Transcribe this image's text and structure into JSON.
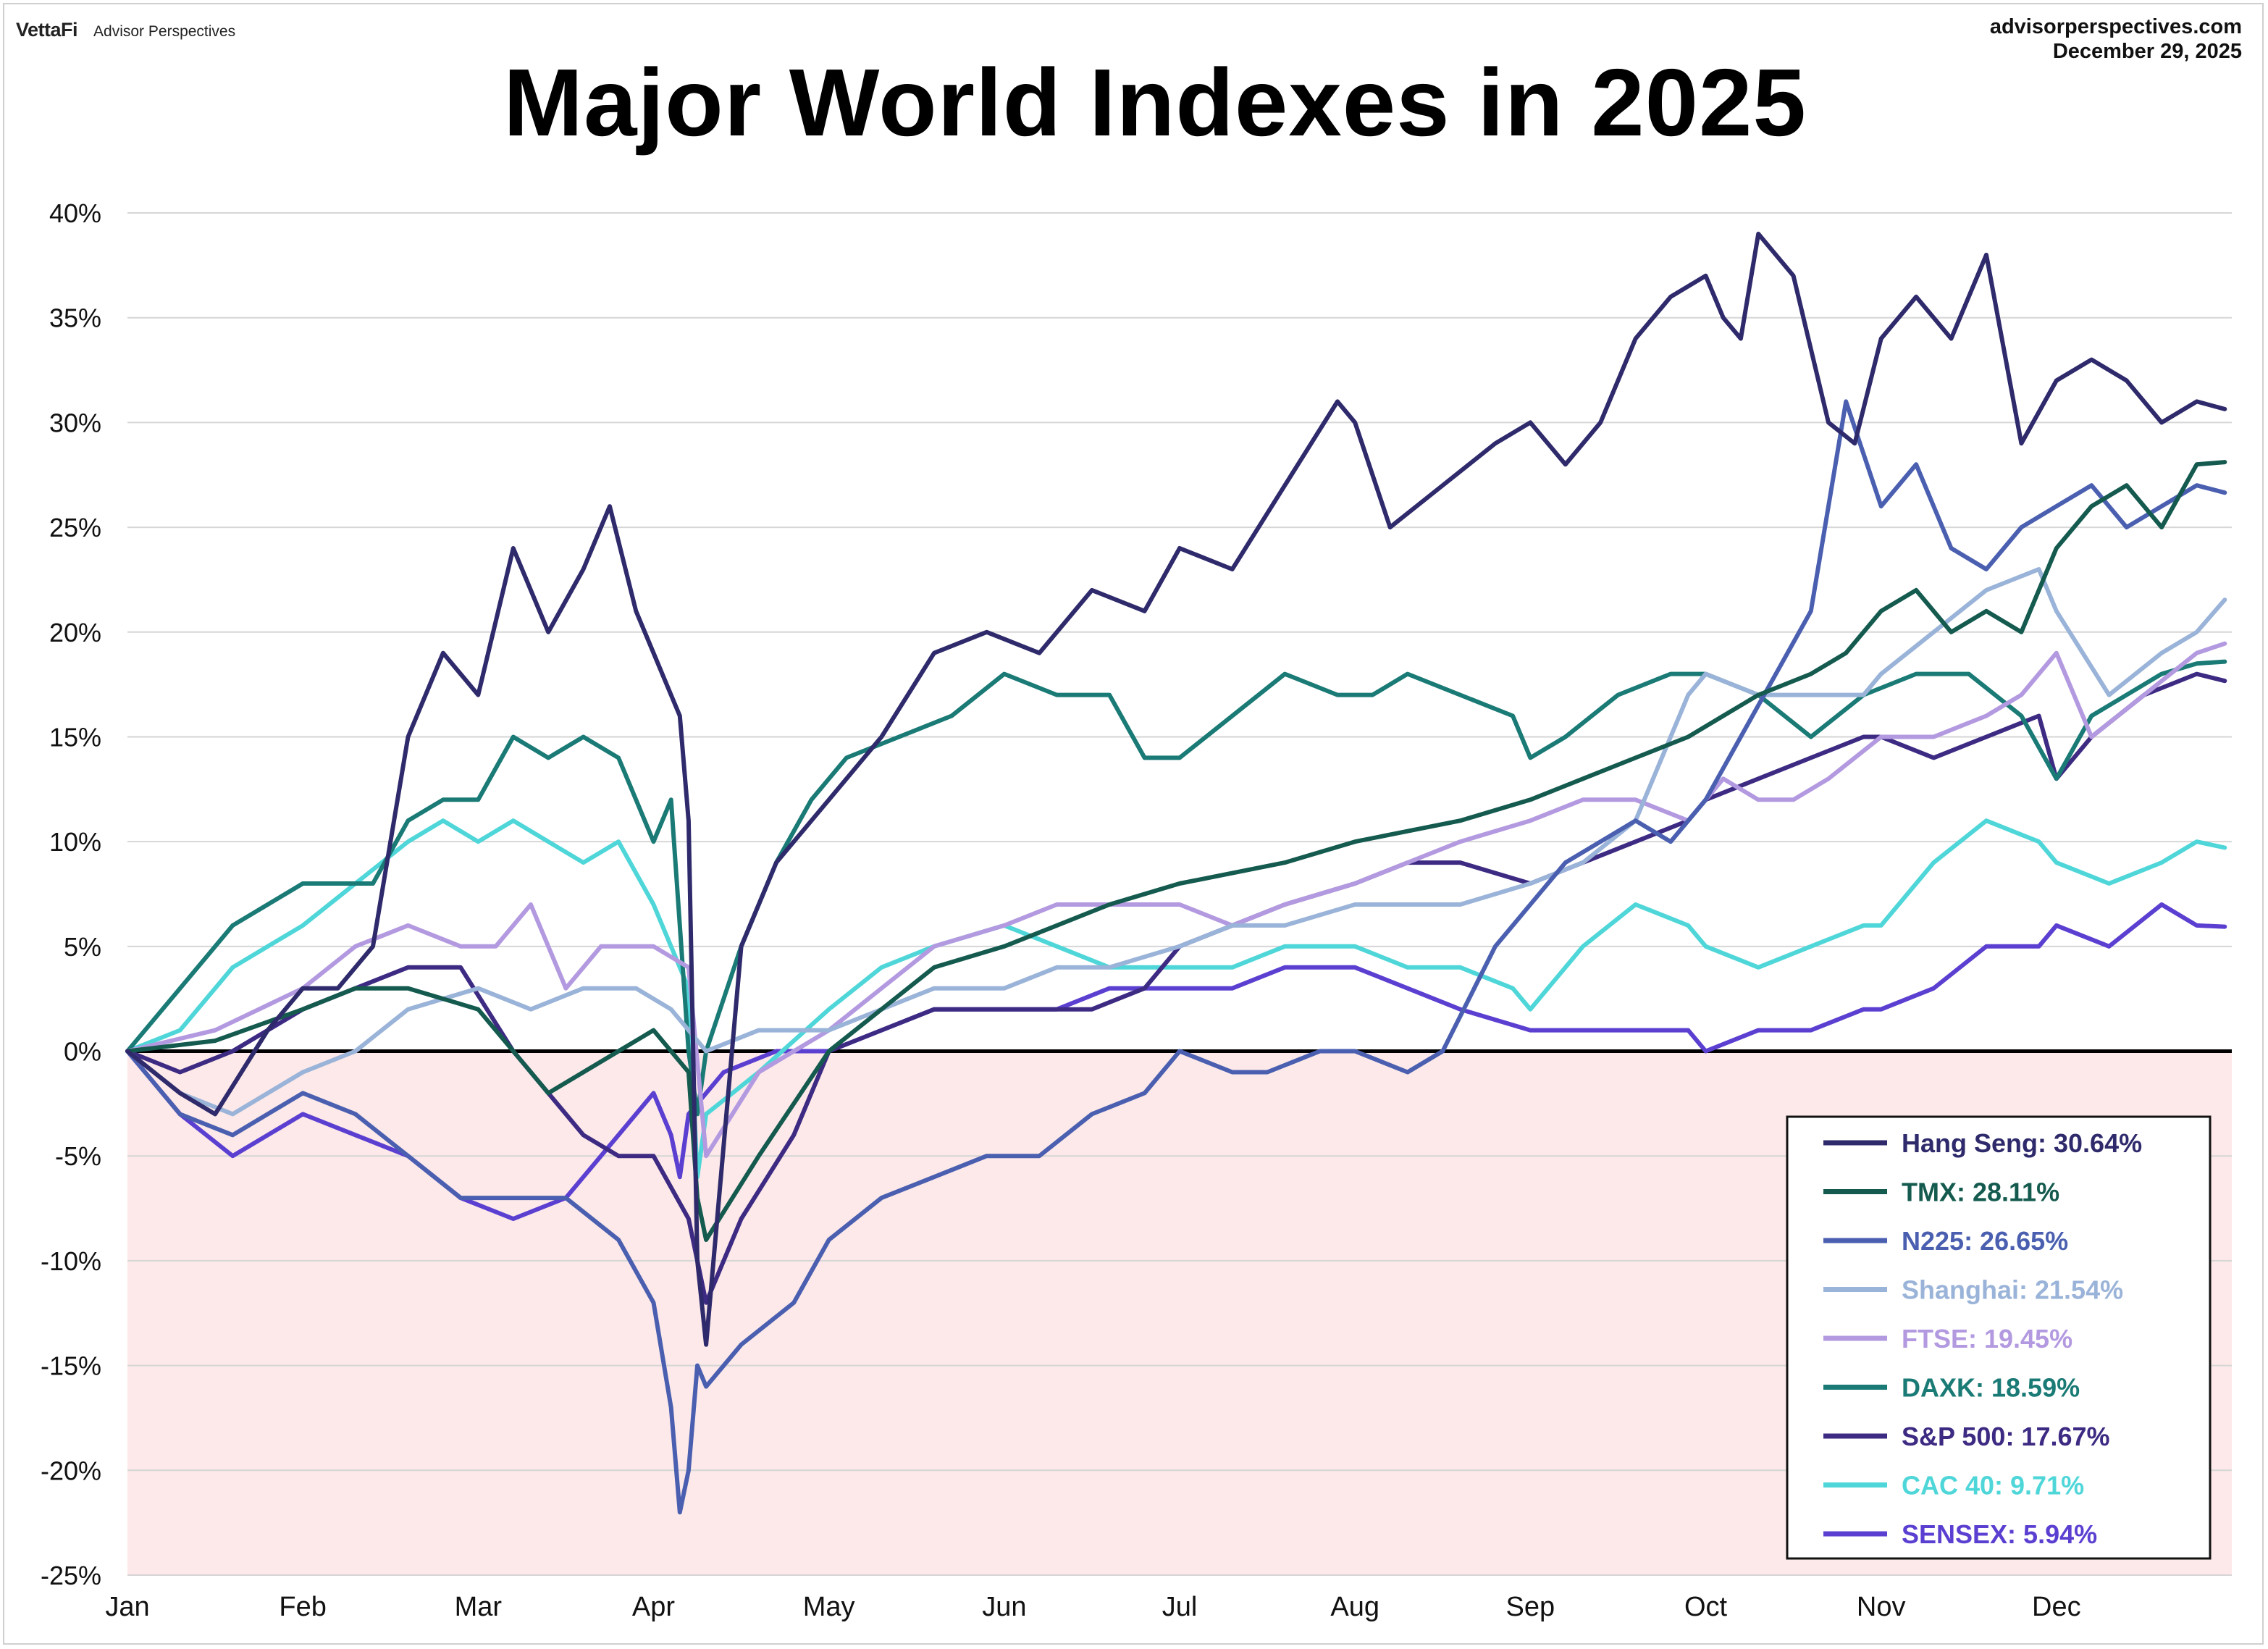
{
  "brand": {
    "logo": "VettaFi",
    "sub": "Advisor Perspectives"
  },
  "site": {
    "url": "advisorperspectives.com",
    "date": "December 29, 2025"
  },
  "chart_data": {
    "type": "line",
    "title": "Major World Indexes in 2025",
    "xlabel": "",
    "ylabel": "",
    "ylim": [
      -25,
      40
    ],
    "y_ticks": [
      "40%",
      "35%",
      "30%",
      "25%",
      "20%",
      "15%",
      "10%",
      "5%",
      "0%",
      "-5%",
      "-10%",
      "-15%",
      "-20%",
      "-25%"
    ],
    "x_ticks": [
      "Jan",
      "Feb",
      "Mar",
      "Apr",
      "May",
      "Jun",
      "Jul",
      "Aug",
      "Sep",
      "Oct",
      "Nov",
      "Dec"
    ],
    "x_unit": "month (0 = Jan 1, 12 = Dec 31)",
    "negative_region_color": "#fde9e9",
    "legend_position": "bottom-right",
    "series": [
      {
        "name": "Hang Seng",
        "label": "Hang Seng: 30.64%",
        "color": "#2e2a6b",
        "x": [
          0,
          0.3,
          0.5,
          0.8,
          1.0,
          1.2,
          1.4,
          1.6,
          1.8,
          2.0,
          2.2,
          2.4,
          2.6,
          2.75,
          2.9,
          3.0,
          3.1,
          3.15,
          3.2,
          3.25,
          3.3,
          3.5,
          3.7,
          4.0,
          4.3,
          4.6,
          4.9,
          5.2,
          5.5,
          5.8,
          6.0,
          6.3,
          6.6,
          6.9,
          7.0,
          7.2,
          7.5,
          7.8,
          8.0,
          8.2,
          8.4,
          8.6,
          8.8,
          9.0,
          9.1,
          9.2,
          9.3,
          9.5,
          9.7,
          9.85,
          10.0,
          10.2,
          10.4,
          10.6,
          10.8,
          11.0,
          11.2,
          11.4,
          11.6,
          11.8,
          11.96
        ],
        "y": [
          0,
          -2,
          -3,
          1,
          3,
          3,
          5,
          15,
          19,
          17,
          24,
          20,
          23,
          26,
          21,
          19,
          17,
          16,
          11,
          -10,
          -14,
          5,
          9,
          12,
          15,
          19,
          20,
          19,
          22,
          21,
          24,
          23,
          27,
          31,
          30,
          25,
          27,
          29,
          30,
          28,
          30,
          34,
          36,
          37,
          35,
          34,
          39,
          37,
          30,
          29,
          34,
          36,
          34,
          38,
          29,
          32,
          33,
          32,
          30,
          31,
          30.64
        ]
      },
      {
        "name": "TMX",
        "label": "TMX: 28.11%",
        "color": "#145a4e",
        "x": [
          0,
          0.5,
          1.0,
          1.3,
          1.6,
          2.0,
          2.2,
          2.4,
          2.6,
          2.8,
          3.0,
          3.2,
          3.25,
          3.3,
          3.6,
          4.0,
          4.3,
          4.6,
          5.0,
          5.3,
          5.6,
          6.0,
          6.3,
          6.6,
          7.0,
          7.3,
          7.6,
          8.0,
          8.3,
          8.6,
          8.9,
          9.1,
          9.3,
          9.6,
          9.8,
          10.0,
          10.2,
          10.4,
          10.6,
          10.8,
          11.0,
          11.2,
          11.4,
          11.6,
          11.8,
          11.96
        ],
        "y": [
          0,
          0.5,
          2,
          3,
          3,
          2,
          0,
          -2,
          -1,
          0,
          1,
          -1,
          -7,
          -9,
          -5,
          0,
          2,
          4,
          5,
          6,
          7,
          8,
          8.5,
          9,
          10,
          10.5,
          11,
          12,
          13,
          14,
          15,
          16,
          17,
          18,
          19,
          21,
          22,
          20,
          21,
          20,
          24,
          26,
          27,
          25,
          28,
          28.11
        ]
      },
      {
        "name": "N225",
        "label": "N225: 26.65%",
        "color": "#4a5fb0",
        "x": [
          0,
          0.3,
          0.6,
          1.0,
          1.3,
          1.6,
          1.9,
          2.2,
          2.5,
          2.8,
          3.0,
          3.1,
          3.15,
          3.2,
          3.25,
          3.3,
          3.5,
          3.8,
          4.0,
          4.3,
          4.6,
          4.9,
          5.2,
          5.5,
          5.8,
          6.0,
          6.3,
          6.5,
          6.8,
          7.0,
          7.3,
          7.5,
          7.8,
          8.0,
          8.2,
          8.4,
          8.6,
          8.8,
          9.0,
          9.2,
          9.4,
          9.6,
          9.8,
          10.0,
          10.2,
          10.4,
          10.6,
          10.8,
          11.0,
          11.2,
          11.4,
          11.6,
          11.8,
          11.96
        ],
        "y": [
          0,
          -3,
          -4,
          -2,
          -3,
          -5,
          -7,
          -7,
          -7,
          -9,
          -12,
          -17,
          -22,
          -20,
          -15,
          -16,
          -14,
          -12,
          -9,
          -7,
          -6,
          -5,
          -5,
          -3,
          -2,
          0,
          -1,
          -1,
          0,
          0,
          -1,
          0,
          5,
          7,
          9,
          10,
          11,
          10,
          12,
          15,
          18,
          21,
          31,
          26,
          28,
          24,
          23,
          25,
          26,
          27,
          25,
          26,
          27,
          26.65
        ]
      },
      {
        "name": "Shanghai",
        "label": "Shanghai: 21.54%",
        "color": "#9ab3d8",
        "x": [
          0,
          0.3,
          0.6,
          1.0,
          1.3,
          1.6,
          2.0,
          2.3,
          2.6,
          2.9,
          3.1,
          3.2,
          3.3,
          3.6,
          4.0,
          4.3,
          4.6,
          5.0,
          5.3,
          5.6,
          6.0,
          6.3,
          6.6,
          7.0,
          7.3,
          7.6,
          8.0,
          8.3,
          8.6,
          8.9,
          9.0,
          9.3,
          9.6,
          9.9,
          10.0,
          10.3,
          10.6,
          10.9,
          11.0,
          11.3,
          11.6,
          11.8,
          11.96
        ],
        "y": [
          0,
          -2,
          -3,
          -1,
          0,
          2,
          3,
          2,
          3,
          3,
          2,
          1,
          0,
          1,
          1,
          2,
          3,
          3,
          4,
          4,
          5,
          6,
          6,
          7,
          7,
          7,
          8,
          9,
          11,
          17,
          18,
          17,
          17,
          17,
          18,
          20,
          22,
          23,
          21,
          17,
          19,
          20,
          21.54
        ]
      },
      {
        "name": "FTSE",
        "label": "FTSE: 19.45%",
        "color": "#b39ae0",
        "x": [
          0,
          0.5,
          1.0,
          1.3,
          1.6,
          1.9,
          2.1,
          2.3,
          2.5,
          2.7,
          3.0,
          3.2,
          3.3,
          3.6,
          4.0,
          4.3,
          4.6,
          5.0,
          5.3,
          5.6,
          6.0,
          6.3,
          6.6,
          7.0,
          7.3,
          7.6,
          8.0,
          8.3,
          8.6,
          8.9,
          9.1,
          9.3,
          9.5,
          9.7,
          10.0,
          10.3,
          10.6,
          10.8,
          10.9,
          11.0,
          11.2,
          11.5,
          11.8,
          11.96
        ],
        "y": [
          0,
          1,
          3,
          5,
          6,
          5,
          5,
          7,
          3,
          5,
          5,
          4,
          -5,
          -1,
          1,
          3,
          5,
          6,
          7,
          7,
          7,
          6,
          7,
          8,
          9,
          10,
          11,
          12,
          12,
          11,
          13,
          12,
          12,
          13,
          15,
          15,
          16,
          17,
          18,
          19,
          15,
          17,
          19,
          19.45
        ]
      },
      {
        "name": "DAXK",
        "label": "DAXK: 18.59%",
        "color": "#1a7a75",
        "x": [
          0,
          0.2,
          0.4,
          0.6,
          0.8,
          1.0,
          1.2,
          1.4,
          1.6,
          1.8,
          2.0,
          2.2,
          2.4,
          2.6,
          2.8,
          3.0,
          3.1,
          3.2,
          3.25,
          3.3,
          3.5,
          3.7,
          3.9,
          4.1,
          4.4,
          4.7,
          5.0,
          5.3,
          5.6,
          5.8,
          6.0,
          6.3,
          6.6,
          6.9,
          7.1,
          7.3,
          7.6,
          7.9,
          8.0,
          8.2,
          8.5,
          8.8,
          9.0,
          9.3,
          9.6,
          9.9,
          10.2,
          10.5,
          10.8,
          11.0,
          11.2,
          11.4,
          11.6,
          11.8,
          11.96
        ],
        "y": [
          0,
          2,
          4,
          6,
          7,
          8,
          8,
          8,
          11,
          12,
          12,
          15,
          14,
          15,
          14,
          10,
          12,
          0,
          -3,
          0,
          5,
          9,
          12,
          14,
          15,
          16,
          18,
          17,
          17,
          14,
          14,
          16,
          18,
          17,
          17,
          18,
          17,
          16,
          14,
          15,
          17,
          18,
          18,
          17,
          15,
          17,
          18,
          18,
          16,
          13,
          16,
          17,
          18,
          18.5,
          18.59
        ]
      },
      {
        "name": "S&P 500",
        "label": "S&P 500: 17.67%",
        "color": "#3d2a82",
        "x": [
          0,
          0.3,
          0.6,
          1.0,
          1.3,
          1.6,
          1.9,
          2.2,
          2.4,
          2.6,
          2.8,
          3.0,
          3.2,
          3.25,
          3.3,
          3.5,
          3.8,
          4.0,
          4.3,
          4.6,
          4.9,
          5.2,
          5.5,
          5.8,
          6.0,
          6.3,
          6.6,
          7.0,
          7.3,
          7.6,
          8.0,
          8.3,
          8.6,
          8.9,
          9.0,
          9.3,
          9.6,
          9.9,
          10.0,
          10.3,
          10.6,
          10.9,
          11.0,
          11.2,
          11.5,
          11.8,
          11.96
        ],
        "y": [
          0,
          -1,
          0,
          2,
          3,
          4,
          4,
          0,
          -2,
          -4,
          -5,
          -5,
          -8,
          -10,
          -12,
          -8,
          -4,
          0,
          1,
          2,
          2,
          2,
          2,
          3,
          5,
          6,
          7,
          8,
          9,
          9,
          8,
          9,
          10,
          11,
          12,
          13,
          14,
          15,
          15,
          14,
          15,
          16,
          13,
          15,
          17,
          18,
          17.67
        ]
      },
      {
        "name": "CAC 40",
        "label": "CAC 40: 9.71%",
        "color": "#4fd6d8",
        "x": [
          0,
          0.3,
          0.6,
          1.0,
          1.3,
          1.6,
          1.8,
          2.0,
          2.2,
          2.4,
          2.6,
          2.8,
          3.0,
          3.1,
          3.2,
          3.25,
          3.3,
          3.6,
          4.0,
          4.3,
          4.6,
          5.0,
          5.3,
          5.6,
          6.0,
          6.3,
          6.6,
          7.0,
          7.3,
          7.6,
          7.9,
          8.0,
          8.3,
          8.6,
          8.9,
          9.0,
          9.3,
          9.6,
          9.9,
          10.0,
          10.3,
          10.6,
          10.9,
          11.0,
          11.3,
          11.6,
          11.8,
          11.96
        ],
        "y": [
          0,
          1,
          4,
          6,
          8,
          10,
          11,
          10,
          11,
          10,
          9,
          10,
          7,
          5,
          3,
          -6,
          -3,
          -1,
          2,
          4,
          5,
          6,
          5,
          4,
          4,
          4,
          5,
          5,
          4,
          4,
          3,
          2,
          5,
          7,
          6,
          5,
          4,
          5,
          6,
          6,
          9,
          11,
          10,
          9,
          8,
          9,
          10,
          9.71
        ]
      },
      {
        "name": "SENSEX",
        "label": "SENSEX: 5.94%",
        "color": "#5b3fd1",
        "x": [
          0,
          0.3,
          0.6,
          1.0,
          1.3,
          1.6,
          1.9,
          2.2,
          2.5,
          2.8,
          3.0,
          3.1,
          3.15,
          3.2,
          3.4,
          3.7,
          4.0,
          4.3,
          4.6,
          5.0,
          5.3,
          5.6,
          6.0,
          6.3,
          6.6,
          7.0,
          7.3,
          7.6,
          8.0,
          8.3,
          8.6,
          8.9,
          9.0,
          9.3,
          9.6,
          9.9,
          10.0,
          10.3,
          10.6,
          10.9,
          11.0,
          11.3,
          11.6,
          11.8,
          11.96
        ],
        "y": [
          0,
          -3,
          -5,
          -3,
          -4,
          -5,
          -7,
          -8,
          -7,
          -4,
          -2,
          -4,
          -6,
          -3,
          -1,
          0,
          0,
          1,
          2,
          2,
          2,
          3,
          3,
          3,
          4,
          4,
          3,
          2,
          1,
          1,
          1,
          1,
          0,
          1,
          1,
          2,
          2,
          3,
          5,
          5,
          6,
          5,
          7,
          6,
          5.94
        ]
      }
    ]
  }
}
